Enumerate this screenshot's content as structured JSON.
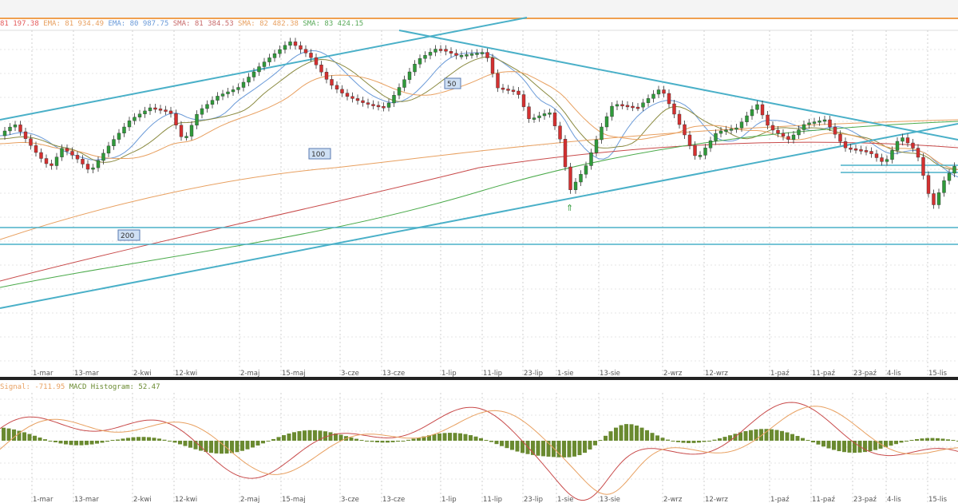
{
  "legend_main": [
    {
      "text": "81 197.38",
      "color": "#e45a5a"
    },
    {
      "text": " EMA: 81 934.49",
      "color": "#e8a060"
    },
    {
      "text": " EMA: 80 987.75",
      "color": "#6a9ad8"
    },
    {
      "text": " SMA: 81 384.53",
      "color": "#c86a6a"
    },
    {
      "text": " SMA: 82 482.38",
      "color": "#e8a060"
    },
    {
      "text": " SMA: 83 424.15",
      "color": "#5aaa5a"
    }
  ],
  "legend_macd": [
    {
      "text": "Signal: -711.95",
      "color": "#e8a060"
    },
    {
      "text": " MACD Histogram: 52.47",
      "color": "#6a8a30"
    }
  ],
  "chart_data": {
    "type": "candlestick",
    "x_ticks": [
      "1-mar",
      "13-mar",
      "2-kwi",
      "12-kwi",
      "2-maj",
      "15-maj",
      "3-cze",
      "13-cze",
      "1-lip",
      "11-lip",
      "23-lip",
      "1-sie",
      "13-sie",
      "2-wrz",
      "12-wrz",
      "1-paź",
      "11-paź",
      "23-paź",
      "4-lis",
      "15-lis"
    ],
    "ma_labels": [
      "50",
      "100",
      "200"
    ],
    "macd_signal": -711.95,
    "macd_histogram": 52.47,
    "colors": {
      "up": "#2f9a3a",
      "down": "#d43030",
      "trend": "#4ab0c8"
    }
  }
}
